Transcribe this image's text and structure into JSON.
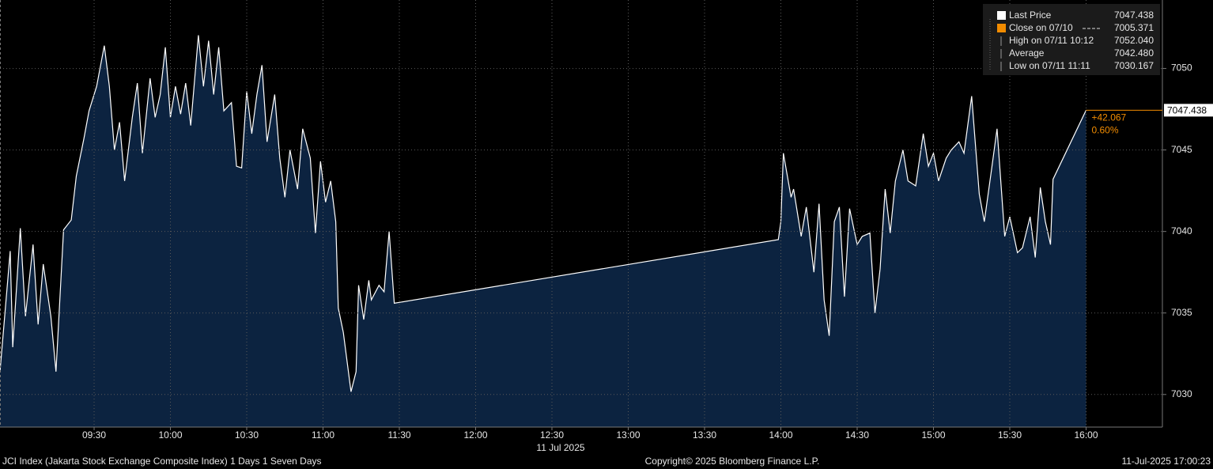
{
  "chart_data": {
    "type": "area",
    "x_label": "11 Jul 2025",
    "line_color": "#ffffff",
    "fill_color": "#0c2340",
    "grid": true,
    "x": [
      533,
      537,
      538,
      541,
      543,
      546,
      548,
      550,
      553,
      555,
      558,
      561,
      563,
      566,
      568,
      571,
      574,
      576,
      578,
      580,
      582,
      585,
      587,
      589,
      592,
      594,
      596,
      598,
      600,
      602,
      604,
      606,
      608,
      611,
      613,
      615,
      617,
      619,
      621,
      624,
      626,
      628,
      630,
      632,
      634,
      636,
      638,
      641,
      643,
      645,
      647,
      650,
      652,
      655,
      657,
      659,
      661,
      663,
      665,
      666,
      668,
      671,
      673,
      674,
      676,
      678,
      679,
      682,
      684,
      686,
      688,
      839,
      840,
      841,
      844,
      845,
      848,
      850,
      853,
      855,
      857,
      859,
      861,
      863,
      865,
      867,
      870,
      872,
      875,
      877,
      879,
      881,
      883,
      885,
      888,
      890,
      893,
      896,
      898,
      900,
      902,
      905,
      907,
      910,
      912,
      915,
      918,
      920,
      923,
      925,
      928,
      930,
      933,
      935,
      938,
      940,
      942,
      944,
      946,
      947,
      960
    ],
    "values": [
      7031.4,
      7038.8,
      7032.9,
      7040.2,
      7034.8,
      7039.2,
      7034.3,
      7038.0,
      7034.8,
      7031.4,
      7040.1,
      7040.7,
      7043.4,
      7045.7,
      7047.4,
      7048.9,
      7051.4,
      7048.9,
      7045.0,
      7046.7,
      7043.1,
      7047.0,
      7049.1,
      7044.8,
      7049.4,
      7047.0,
      7048.4,
      7051.3,
      7047.0,
      7048.9,
      7047.2,
      7049.1,
      7046.5,
      7052.04,
      7048.9,
      7051.7,
      7048.4,
      7051.3,
      7047.4,
      7047.9,
      7044.0,
      7043.9,
      7048.6,
      7046.0,
      7048.4,
      7050.2,
      7045.5,
      7048.4,
      7044.5,
      7042.1,
      7045.0,
      7042.6,
      7046.3,
      7044.5,
      7039.9,
      7044.3,
      7041.8,
      7043.1,
      7040.6,
      7035.3,
      7033.8,
      7030.167,
      7031.4,
      7036.7,
      7034.6,
      7037.0,
      7035.8,
      7036.7,
      7036.3,
      7040.0,
      7035.6,
      7039.5,
      7040.6,
      7044.8,
      7042.1,
      7042.6,
      7039.7,
      7041.5,
      7037.5,
      7041.7,
      7035.8,
      7033.6,
      7040.6,
      7041.5,
      7036.0,
      7041.4,
      7039.2,
      7039.7,
      7039.9,
      7035.0,
      7037.7,
      7042.6,
      7039.9,
      7043.1,
      7045.0,
      7043.1,
      7042.8,
      7046.0,
      7044.0,
      7044.8,
      7043.1,
      7044.5,
      7045.0,
      7045.5,
      7044.8,
      7048.3,
      7042.3,
      7040.6,
      7044.0,
      7046.3,
      7039.7,
      7040.9,
      7038.7,
      7039.0,
      7040.9,
      7038.4,
      7042.7,
      7040.6,
      7039.2,
      7043.2,
      7047.438
    ],
    "xlim": [
      533,
      990
    ],
    "xticks": [
      {
        "value": 570,
        "label": "09:30"
      },
      {
        "value": 600,
        "label": "10:00"
      },
      {
        "value": 630,
        "label": "10:30"
      },
      {
        "value": 660,
        "label": "11:00"
      },
      {
        "value": 690,
        "label": "11:30"
      },
      {
        "value": 720,
        "label": "12:00"
      },
      {
        "value": 750,
        "label": "12:30"
      },
      {
        "value": 780,
        "label": "13:00"
      },
      {
        "value": 810,
        "label": "13:30"
      },
      {
        "value": 840,
        "label": "14:00"
      },
      {
        "value": 870,
        "label": "14:30"
      },
      {
        "value": 900,
        "label": "15:00"
      },
      {
        "value": 930,
        "label": "15:30"
      },
      {
        "value": 960,
        "label": "16:00"
      }
    ],
    "ylim": [
      7028.0,
      7054.2
    ],
    "yticks": [
      7030,
      7035,
      7040,
      7045,
      7050
    ],
    "stats": [
      {
        "label": "Last Price",
        "value": 7047.438,
        "color": "#ffffff"
      },
      {
        "label": "Close on 07/10",
        "value": 7005.371,
        "color": "#f28c00"
      },
      {
        "label": "High on 07/11 10:12",
        "value": 7052.04,
        "value_label": "7052.040"
      },
      {
        "label": "Average",
        "value": 7042.48,
        "value_label": "7042.480"
      },
      {
        "label": "Low on 07/11 11:11",
        "value": 7030.167
      }
    ],
    "last_color": "#f28c00",
    "change": {
      "value": 42.067,
      "label": "+42.067"
    },
    "change_pct": {
      "value": 0.6,
      "label": "0.60%"
    },
    "footer_left": "JCI Index (Jakarta Stock Exchange Composite Index) 1 Days 1 Seven Days",
    "copyright": "Copyright© 2025 Bloomberg Finance L.P.",
    "timestamp": "11-Jul-2025 17:00:23"
  }
}
